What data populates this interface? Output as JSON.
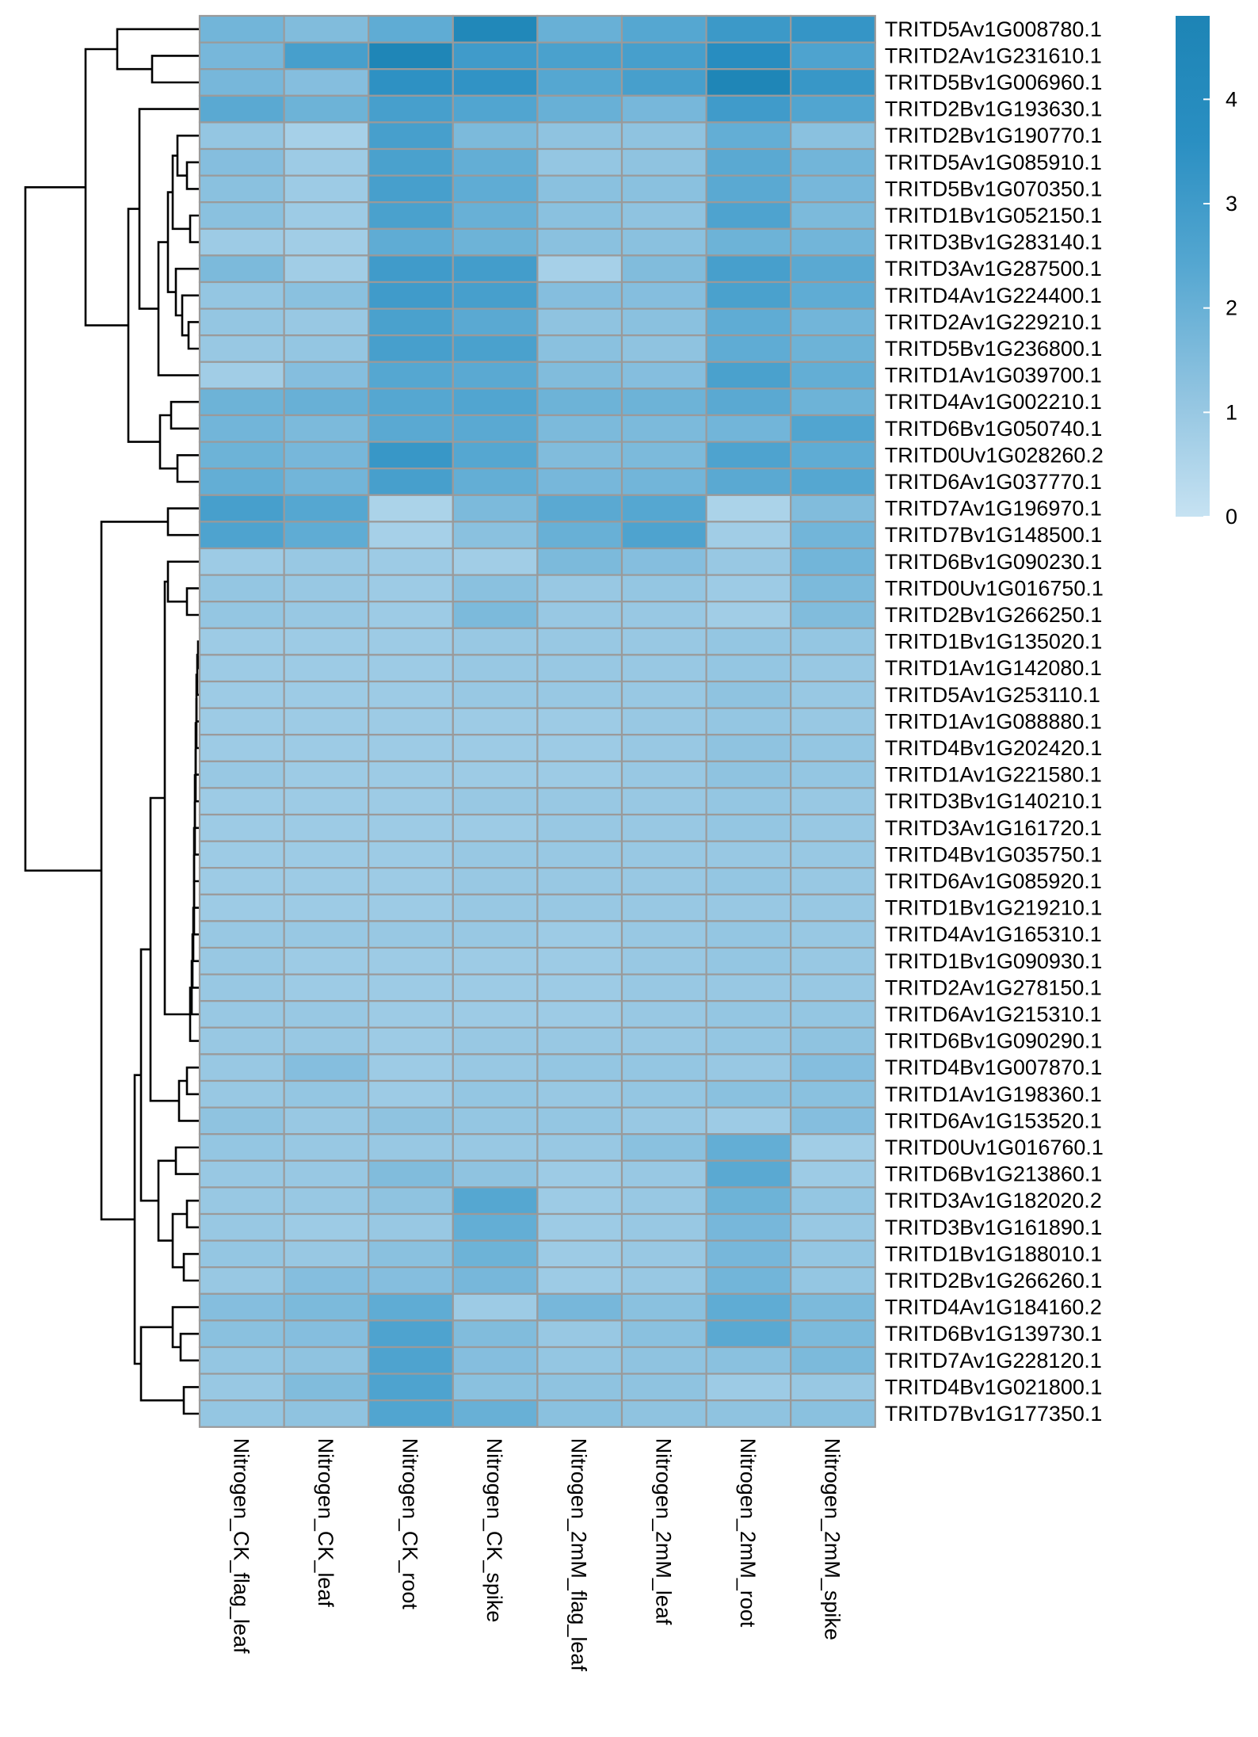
{
  "chart_data": {
    "type": "heatmap",
    "title": "",
    "xlabel": "",
    "ylabel": "",
    "columns": [
      "Nitrogen_CK_flag_leaf",
      "Nitrogen_CK_leaf",
      "Nitrogen_CK_root",
      "Nitrogen_CK_spike",
      "Nitrogen_2mM_flag_leaf",
      "Nitrogen_2mM_leaf",
      "Nitrogen_2mM_root",
      "Nitrogen_2mM_spike"
    ],
    "rows": [
      "TRITD5Av1G008780.1",
      "TRITD2Av1G231610.1",
      "TRITD5Bv1G006960.1",
      "TRITD2Bv1G193630.1",
      "TRITD2Bv1G190770.1",
      "TRITD5Av1G085910.1",
      "TRITD5Bv1G070350.1",
      "TRITD1Bv1G052150.1",
      "TRITD3Bv1G283140.1",
      "TRITD3Av1G287500.1",
      "TRITD4Av1G224400.1",
      "TRITD2Av1G229210.1",
      "TRITD5Bv1G236800.1",
      "TRITD1Av1G039700.1",
      "TRITD4Av1G002210.1",
      "TRITD6Bv1G050740.1",
      "TRITD0Uv1G028260.2",
      "TRITD6Av1G037770.1",
      "TRITD7Av1G196970.1",
      "TRITD7Bv1G148500.1",
      "TRITD6Bv1G090230.1",
      "TRITD0Uv1G016750.1",
      "TRITD2Bv1G266250.1",
      "TRITD1Bv1G135020.1",
      "TRITD1Av1G142080.1",
      "TRITD5Av1G253110.1",
      "TRITD1Av1G088880.1",
      "TRITD4Bv1G202420.1",
      "TRITD1Av1G221580.1",
      "TRITD3Bv1G140210.1",
      "TRITD3Av1G161720.1",
      "TRITD4Bv1G035750.1",
      "TRITD6Av1G085920.1",
      "TRITD1Bv1G219210.1",
      "TRITD4Av1G165310.1",
      "TRITD1Bv1G090930.1",
      "TRITD2Av1G278150.1",
      "TRITD6Av1G215310.1",
      "TRITD6Bv1G090290.1",
      "TRITD4Bv1G007870.1",
      "TRITD1Av1G198360.1",
      "TRITD6Av1G153520.1",
      "TRITD0Uv1G016760.1",
      "TRITD6Bv1G213860.1",
      "TRITD3Av1G182020.2",
      "TRITD3Bv1G161890.1",
      "TRITD1Bv1G188010.1",
      "TRITD2Bv1G266260.1",
      "TRITD4Av1G184160.2",
      "TRITD6Bv1G139730.1",
      "TRITD7Av1G228120.1",
      "TRITD4Bv1G021800.1",
      "TRITD7Bv1G177350.1"
    ],
    "values": [
      [
        1.8,
        1.5,
        2.2,
        4.4,
        2.0,
        2.4,
        3.1,
        3.3
      ],
      [
        1.7,
        2.8,
        4.6,
        3.0,
        2.7,
        2.8,
        3.8,
        2.6
      ],
      [
        1.7,
        1.4,
        3.5,
        3.4,
        2.4,
        2.8,
        4.6,
        3.2
      ],
      [
        2.3,
        1.9,
        2.8,
        2.5,
        2.0,
        1.7,
        3.0,
        2.5
      ],
      [
        1.1,
        0.7,
        2.8,
        1.6,
        1.2,
        1.2,
        2.1,
        1.3
      ],
      [
        1.4,
        0.9,
        2.7,
        2.1,
        1.1,
        1.2,
        2.3,
        1.8
      ],
      [
        1.3,
        0.9,
        2.8,
        2.2,
        1.3,
        1.3,
        2.3,
        1.7
      ],
      [
        1.3,
        0.9,
        2.7,
        2.0,
        1.3,
        1.2,
        2.6,
        1.6
      ],
      [
        0.9,
        0.8,
        2.2,
        1.9,
        1.3,
        1.3,
        1.9,
        1.8
      ],
      [
        1.6,
        0.8,
        3.0,
        2.9,
        0.7,
        1.5,
        2.8,
        2.3
      ],
      [
        1.1,
        1.3,
        3.0,
        2.8,
        1.4,
        1.4,
        2.7,
        2.2
      ],
      [
        1.1,
        1.0,
        2.7,
        2.3,
        1.2,
        1.3,
        2.2,
        1.8
      ],
      [
        1.0,
        1.1,
        2.8,
        2.7,
        1.3,
        1.2,
        2.2,
        1.9
      ],
      [
        0.8,
        1.4,
        2.4,
        2.3,
        1.5,
        1.4,
        2.7,
        2.1
      ],
      [
        1.9,
        2.0,
        2.4,
        2.5,
        1.9,
        1.9,
        2.3,
        1.9
      ],
      [
        1.8,
        1.6,
        2.3,
        2.3,
        1.6,
        1.6,
        1.8,
        2.5
      ],
      [
        1.9,
        1.7,
        3.2,
        2.4,
        1.5,
        1.6,
        2.6,
        2.2
      ],
      [
        2.1,
        1.8,
        2.8,
        2.1,
        1.7,
        1.8,
        2.3,
        2.4
      ],
      [
        2.8,
        2.4,
        0.6,
        1.6,
        2.3,
        2.4,
        0.6,
        1.5
      ],
      [
        2.6,
        2.2,
        0.7,
        1.3,
        2.0,
        2.6,
        0.8,
        1.8
      ],
      [
        0.9,
        1.0,
        0.9,
        0.8,
        1.6,
        1.4,
        1.0,
        1.8
      ],
      [
        1.1,
        1.0,
        0.9,
        1.3,
        1.0,
        1.1,
        0.9,
        1.6
      ],
      [
        1.1,
        1.0,
        0.9,
        1.6,
        1.0,
        1.0,
        0.8,
        1.5
      ],
      [
        0.9,
        0.9,
        0.9,
        1.0,
        1.0,
        1.0,
        1.1,
        1.1
      ],
      [
        0.9,
        0.9,
        0.9,
        1.0,
        1.0,
        1.0,
        1.1,
        1.0
      ],
      [
        0.9,
        0.9,
        0.9,
        1.0,
        1.0,
        1.0,
        1.2,
        1.0
      ],
      [
        0.9,
        0.9,
        0.9,
        0.9,
        0.9,
        1.0,
        1.1,
        1.0
      ],
      [
        0.9,
        0.9,
        0.9,
        0.9,
        0.9,
        1.0,
        1.2,
        1.1
      ],
      [
        1.0,
        0.9,
        0.9,
        0.9,
        0.9,
        1.0,
        1.2,
        1.1
      ],
      [
        0.9,
        0.9,
        0.9,
        1.0,
        1.0,
        1.0,
        1.1,
        1.0
      ],
      [
        0.9,
        0.9,
        0.9,
        0.9,
        1.0,
        1.0,
        1.1,
        1.0
      ],
      [
        0.9,
        0.9,
        0.9,
        1.0,
        1.0,
        1.0,
        1.0,
        1.0
      ],
      [
        0.9,
        0.9,
        0.9,
        1.0,
        1.0,
        1.0,
        1.1,
        1.0
      ],
      [
        0.9,
        0.9,
        0.9,
        1.0,
        1.0,
        1.0,
        1.0,
        1.0
      ],
      [
        1.0,
        1.0,
        1.0,
        1.0,
        0.9,
        1.0,
        1.1,
        1.0
      ],
      [
        1.0,
        0.9,
        0.9,
        0.9,
        0.9,
        1.0,
        1.1,
        1.0
      ],
      [
        1.0,
        0.9,
        0.9,
        0.9,
        0.9,
        1.0,
        1.0,
        1.0
      ],
      [
        1.0,
        1.0,
        0.9,
        0.9,
        0.9,
        1.0,
        1.1,
        1.1
      ],
      [
        1.0,
        1.0,
        0.9,
        1.0,
        1.0,
        1.0,
        1.1,
        1.2
      ],
      [
        1.0,
        1.4,
        0.9,
        1.0,
        1.1,
        1.1,
        1.0,
        1.4
      ],
      [
        1.0,
        1.1,
        0.9,
        1.1,
        1.0,
        1.1,
        1.3,
        1.3
      ],
      [
        1.2,
        1.0,
        1.2,
        1.1,
        1.1,
        1.0,
        0.9,
        1.4
      ],
      [
        1.1,
        1.0,
        1.0,
        1.0,
        1.0,
        1.3,
        2.1,
        0.8
      ],
      [
        1.0,
        1.0,
        1.5,
        1.2,
        0.9,
        1.0,
        2.3,
        0.9
      ],
      [
        1.0,
        1.0,
        1.2,
        2.4,
        0.9,
        1.0,
        1.9,
        1.1
      ],
      [
        1.0,
        0.9,
        1.0,
        2.1,
        0.9,
        1.0,
        1.7,
        1.0
      ],
      [
        1.1,
        1.0,
        1.3,
        1.9,
        0.9,
        1.0,
        1.7,
        1.1
      ],
      [
        1.0,
        1.4,
        1.4,
        1.7,
        0.9,
        1.0,
        1.8,
        1.1
      ],
      [
        1.4,
        1.6,
        2.2,
        0.9,
        1.7,
        1.3,
        2.2,
        1.6
      ],
      [
        1.3,
        1.4,
        2.6,
        1.5,
        1.0,
        1.3,
        2.3,
        1.6
      ],
      [
        1.1,
        1.2,
        2.6,
        1.4,
        1.1,
        1.2,
        1.3,
        1.6
      ],
      [
        1.0,
        1.5,
        2.6,
        1.3,
        1.2,
        1.2,
        0.9,
        1.0
      ],
      [
        1.1,
        1.2,
        2.5,
        2.0,
        1.3,
        1.2,
        1.2,
        1.3
      ]
    ],
    "row_dendrogram": true,
    "legend": {
      "ticks": [
        0,
        1,
        2,
        3,
        4
      ],
      "range": [
        0,
        4.8
      ],
      "color_low": "#c6e2f2",
      "color_high": "#1d84b5",
      "placement": "right"
    },
    "colors": {
      "cell_border": "#9a9a9a",
      "dendrogram_line": "#000000",
      "scale_stops": [
        "#c6e2f2",
        "#8fc3e0",
        "#55a7d1",
        "#2a8fc2",
        "#1d84b5"
      ]
    }
  }
}
